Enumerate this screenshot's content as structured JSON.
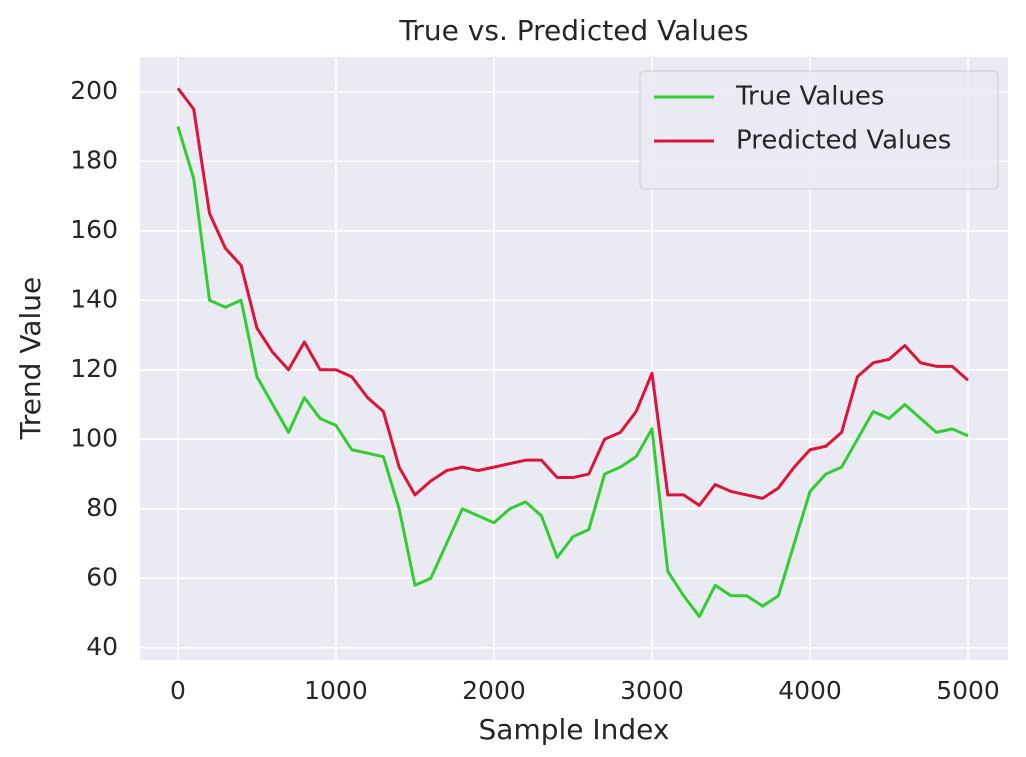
{
  "chart_data": {
    "type": "line",
    "title": "True vs. Predicted Values",
    "x_label": "Sample Index",
    "y_label": "Trend Value",
    "x": [
      0,
      100,
      200,
      300,
      400,
      500,
      600,
      700,
      800,
      900,
      1000,
      1100,
      1200,
      1300,
      1400,
      1500,
      1600,
      1700,
      1800,
      1900,
      2000,
      2100,
      2200,
      2300,
      2400,
      2500,
      2600,
      2700,
      2800,
      2900,
      3000,
      3100,
      3200,
      3300,
      3400,
      3500,
      3600,
      3700,
      3800,
      3900,
      4000,
      4100,
      4200,
      4300,
      4400,
      4500,
      4600,
      4700,
      4800,
      4900,
      5000
    ],
    "series": [
      {
        "name": "True Values",
        "color": "#32cd32",
        "values": [
          190,
          175,
          140,
          138,
          140,
          118,
          110,
          102,
          112,
          106,
          104,
          97,
          96,
          95,
          80,
          58,
          60,
          70,
          80,
          78,
          76,
          80,
          82,
          78,
          66,
          72,
          74,
          90,
          92,
          95,
          103,
          62,
          55,
          49,
          58,
          55,
          55,
          52,
          55,
          70,
          85,
          90,
          92,
          100,
          108,
          106,
          110,
          106,
          102,
          103,
          101
        ]
      },
      {
        "name": "Predicted Values",
        "color": "#dc143c",
        "values": [
          201,
          195,
          165,
          155,
          150,
          132,
          125,
          120,
          128,
          120,
          120,
          118,
          112,
          108,
          92,
          84,
          88,
          91,
          92,
          91,
          92,
          93,
          94,
          94,
          89,
          89,
          90,
          100,
          102,
          108,
          119,
          84,
          84,
          81,
          87,
          85,
          84,
          83,
          86,
          92,
          97,
          98,
          102,
          118,
          122,
          123,
          127,
          122,
          121,
          121,
          117
        ]
      }
    ],
    "xlim": [
      -240,
      5253
    ],
    "ylim": [
      36.5,
      210
    ],
    "xticks": [
      0,
      1000,
      2000,
      3000,
      4000,
      5000
    ],
    "yticks": [
      40,
      60,
      80,
      100,
      120,
      140,
      160,
      180,
      200
    ],
    "grid": true,
    "legend": "upper right"
  }
}
